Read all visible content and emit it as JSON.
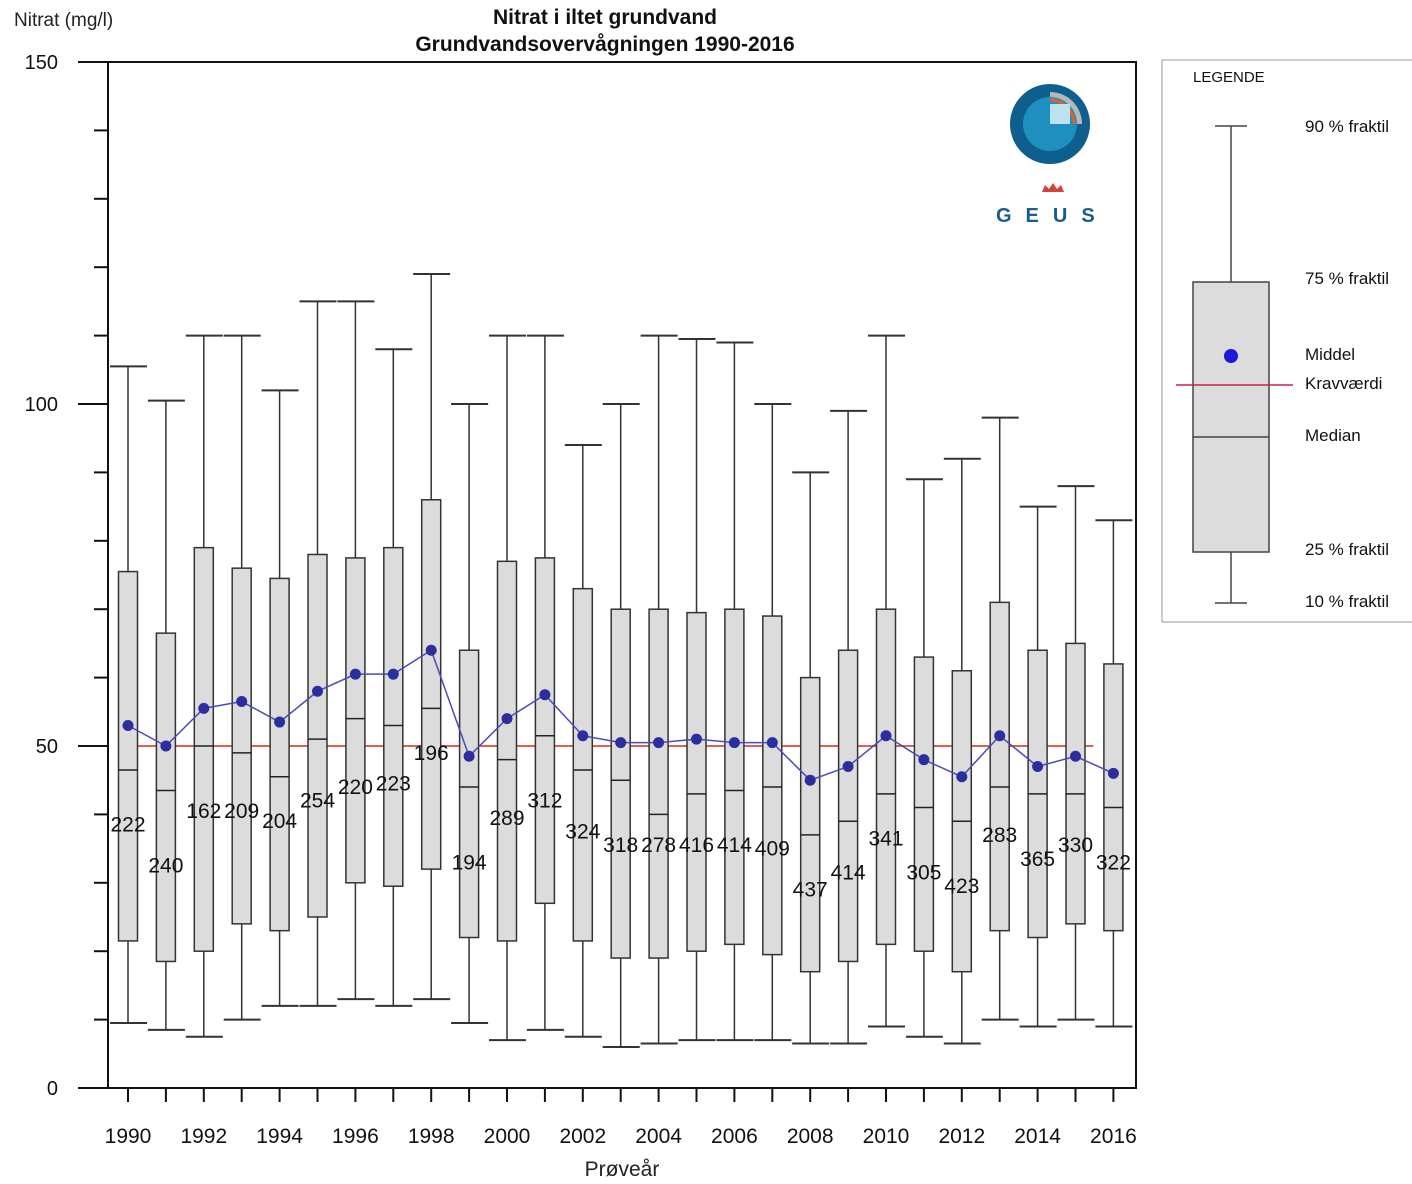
{
  "chart_data": {
    "type": "box",
    "title": [
      "Nitrat i iltet grundvand",
      "Grundvandsovervågningen 1990-2016"
    ],
    "ylabel": "Nitrat (mg/l)",
    "xlabel": "Prøveår",
    "ylim": [
      0,
      150
    ],
    "yticks": [
      0,
      50,
      100,
      150
    ],
    "xticks": [
      "1990",
      "1992",
      "1994",
      "1996",
      "1998",
      "2000",
      "2002",
      "2004",
      "2006",
      "2008",
      "2010",
      "2012",
      "2014",
      "2016"
    ],
    "reference_line": {
      "value": 50,
      "color": "#e06050"
    },
    "mean_color": "#2b2f9e",
    "box_fill": "#dcdcdc",
    "years": [
      1990,
      1991,
      1992,
      1993,
      1994,
      1995,
      1996,
      1997,
      1998,
      1999,
      2000,
      2001,
      2002,
      2003,
      2004,
      2005,
      2006,
      2007,
      2008,
      2009,
      2010,
      2011,
      2012,
      2013,
      2014,
      2015,
      2016
    ],
    "p10": [
      9.5,
      8.5,
      7.5,
      10,
      12,
      12,
      13,
      12,
      13,
      9.5,
      7,
      8.5,
      7.5,
      6,
      6.5,
      7,
      7,
      7,
      6.5,
      6.5,
      9,
      7.5,
      6.5,
      10,
      9,
      10,
      9
    ],
    "p25": [
      21.5,
      18.5,
      20,
      24,
      23,
      25,
      30,
      29.5,
      32,
      22,
      21.5,
      27,
      21.5,
      19,
      19,
      20,
      21,
      19.5,
      17,
      18.5,
      21,
      20,
      17,
      23,
      22,
      24,
      23
    ],
    "median": [
      46.5,
      43.5,
      50,
      49,
      45.5,
      51,
      54,
      53,
      55.5,
      44,
      48,
      51.5,
      46.5,
      45,
      40,
      43,
      43.5,
      44,
      37,
      39,
      43,
      41,
      39,
      44,
      43,
      43,
      41
    ],
    "mean": [
      53,
      50,
      55.5,
      56.5,
      53.5,
      58,
      60.5,
      60.5,
      64,
      48.5,
      54,
      57.5,
      51.5,
      50.5,
      50.5,
      51,
      50.5,
      50.5,
      45,
      47,
      51.5,
      48,
      45.5,
      51.5,
      47,
      48.5,
      46
    ],
    "p75": [
      75.5,
      66.5,
      79,
      76,
      74.5,
      78,
      77.5,
      79,
      86,
      64,
      77,
      77.5,
      73,
      70,
      70,
      69.5,
      70,
      69,
      60,
      64,
      70,
      63,
      61,
      71,
      64,
      65,
      62
    ],
    "p90": [
      105.5,
      100.5,
      110,
      110,
      102,
      115,
      115,
      108,
      119,
      100,
      110,
      110,
      94,
      100,
      110,
      109.5,
      109,
      100,
      90,
      99,
      110,
      89,
      92,
      98,
      85,
      88,
      83
    ],
    "counts": [
      222,
      240,
      162,
      209,
      204,
      254,
      220,
      223,
      196,
      194,
      289,
      312,
      324,
      318,
      278,
      416,
      414,
      409,
      437,
      414,
      341,
      305,
      423,
      283,
      365,
      330,
      322
    ],
    "count_y": [
      38.5,
      32.5,
      40.5,
      40.5,
      39,
      42,
      44,
      44.5,
      49,
      33,
      39.5,
      42,
      37.5,
      35.5,
      35.5,
      35.5,
      35.5,
      35,
      29,
      31.5,
      36.5,
      31.5,
      29.5,
      37,
      33.5,
      35.5,
      33
    ]
  },
  "legend": {
    "title": "LEGENDE",
    "p90": "90 % fraktil",
    "p75": "75 % fraktil",
    "mean": "Middel",
    "ref": "Kravværdi",
    "median": "Median",
    "p25": "25 % fraktil",
    "p10": "10 % fraktil"
  },
  "logo": {
    "text": "GEUS",
    "colors": {
      "dark": "#0e5f8e",
      "mid": "#1f8fc0",
      "light": "#bfe2ef",
      "orange": "#e0602a",
      "gray": "#b8b8b8",
      "crown": "#d0423a"
    }
  }
}
